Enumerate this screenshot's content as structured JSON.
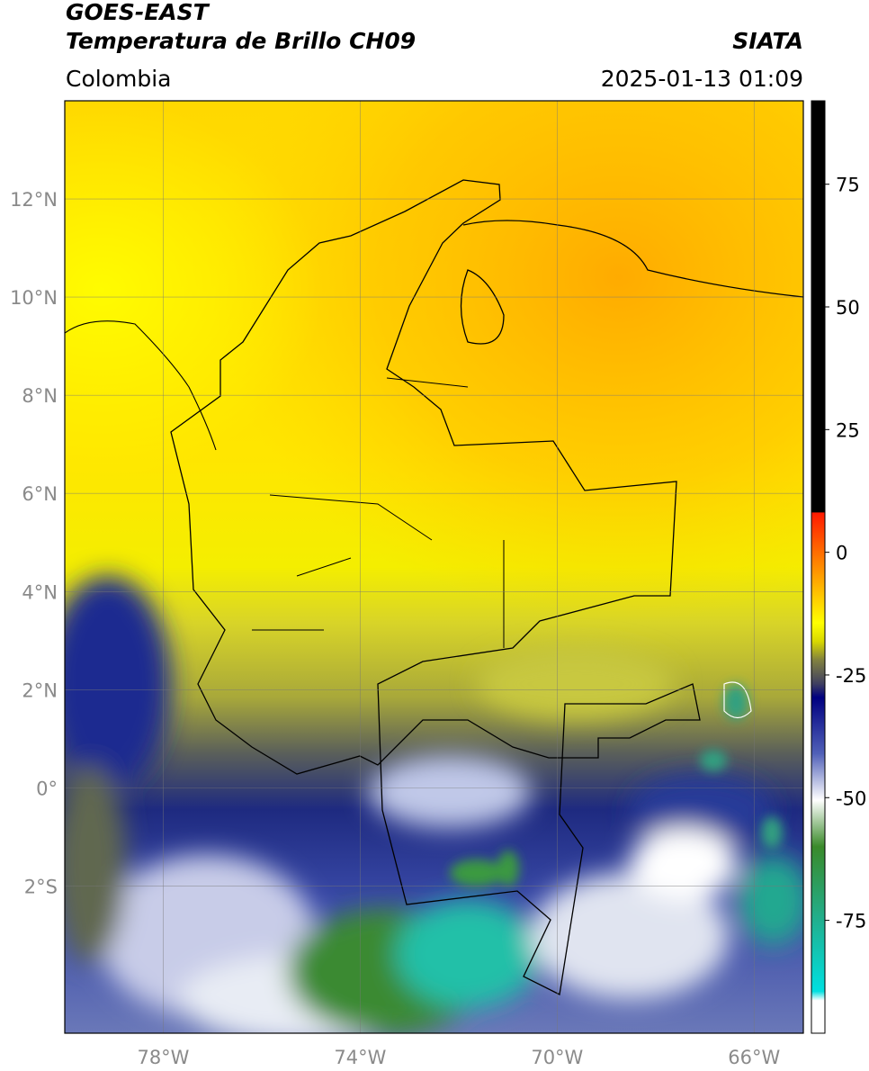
{
  "header": {
    "satellite": "GOES-EAST",
    "product": "Temperatura de Brillo CH09",
    "region": "Colombia",
    "source": "SIATA",
    "timestamp": "2025-01-13 01:09"
  },
  "map": {
    "lon_range": [
      -80,
      -65
    ],
    "lat_range": [
      -5,
      14
    ],
    "lat_ticks": [
      {
        "value": 12,
        "label": "12°N"
      },
      {
        "value": 10,
        "label": "10°N"
      },
      {
        "value": 8,
        "label": "8°N"
      },
      {
        "value": 6,
        "label": "6°N"
      },
      {
        "value": 4,
        "label": "4°N"
      },
      {
        "value": 2,
        "label": "2°N"
      },
      {
        "value": 0,
        "label": "0°"
      },
      {
        "value": -2,
        "label": "2°S"
      }
    ],
    "lon_ticks": [
      {
        "value": -78,
        "label": "78°W"
      },
      {
        "value": -74,
        "label": "74°W"
      },
      {
        "value": -70,
        "label": "70°W"
      },
      {
        "value": -66,
        "label": "66°W"
      }
    ]
  },
  "colorbar": {
    "range": [
      -98,
      92
    ],
    "ticks": [
      75,
      50,
      25,
      0,
      -25,
      -50,
      -75
    ]
  }
}
